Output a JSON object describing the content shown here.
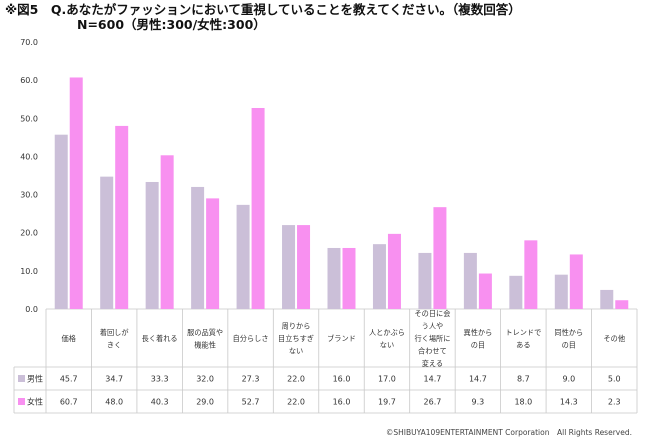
{
  "title_line1": "※図5　Q.あなたがファッションにおいて重視していることを教えてください。（複数回答）",
  "title_line2": "N=600（男性:300/女性:300）",
  "copyright": "©SHIBUYA109ENTERTAINMENT Corporation　All Rights Reserved.",
  "colors": {
    "male": "#cbbfd8",
    "female": "#f890f0"
  },
  "chart_data": {
    "type": "bar",
    "title": "",
    "xlabel": "",
    "ylabel": "",
    "ylim": [
      0,
      70
    ],
    "yticks": [
      "0.0",
      "10.0",
      "20.0",
      "30.0",
      "40.0",
      "50.0",
      "60.0",
      "70.0"
    ],
    "grid": false,
    "legend": "table-left",
    "categories": [
      [
        "価格"
      ],
      [
        "着回しが",
        "きく"
      ],
      [
        "長く着れる"
      ],
      [
        "服の品質や",
        "機能性"
      ],
      [
        "自分らしさ"
      ],
      [
        "周りから",
        "目立ちすぎ",
        "ない"
      ],
      [
        "ブランド"
      ],
      [
        "人とかぶら",
        "ない"
      ],
      [
        "その日に会",
        "う人や",
        "行く場所に",
        "合わせて",
        "変える"
      ],
      [
        "異性から",
        "の目"
      ],
      [
        "トレンドで",
        "ある"
      ],
      [
        "同性から",
        "の目"
      ],
      [
        "その他"
      ]
    ],
    "series": [
      {
        "name": "男性",
        "values": [
          45.7,
          34.7,
          33.3,
          32.0,
          27.3,
          22.0,
          16.0,
          17.0,
          14.7,
          14.7,
          8.7,
          9.0,
          5.0
        ]
      },
      {
        "name": "女性",
        "values": [
          60.7,
          48.0,
          40.3,
          29.0,
          52.7,
          22.0,
          16.0,
          19.7,
          26.7,
          9.3,
          18.0,
          14.3,
          2.3
        ]
      }
    ]
  }
}
